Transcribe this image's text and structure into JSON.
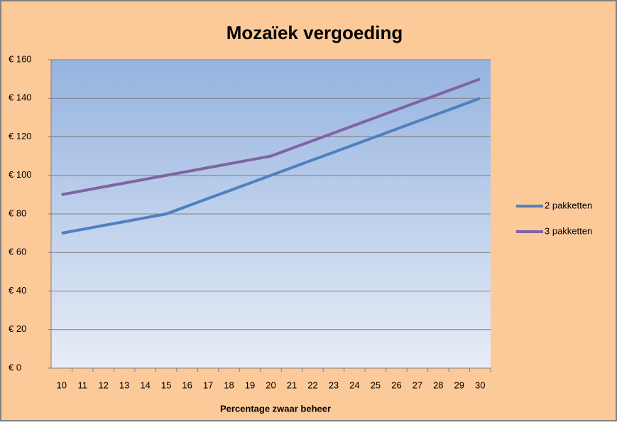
{
  "chart_data": {
    "type": "line",
    "title": "Mozaïek vergoeding",
    "x_label": "Percentage zwaar beheer",
    "categories": [
      "10",
      "11",
      "12",
      "13",
      "14",
      "15",
      "16",
      "17",
      "18",
      "19",
      "20",
      "21",
      "22",
      "23",
      "24",
      "25",
      "26",
      "27",
      "28",
      "29",
      "30"
    ],
    "series": [
      {
        "name": "2 pakketten",
        "color": "#4f81bd",
        "values": [
          70,
          72,
          74,
          76,
          78,
          80,
          84,
          88,
          92,
          96,
          100,
          104,
          108,
          112,
          116,
          120,
          124,
          128,
          132,
          136,
          140
        ]
      },
      {
        "name": "3 pakketten",
        "color": "#8064a2",
        "values": [
          90,
          92,
          94,
          96,
          98,
          100,
          102,
          104,
          106,
          108,
          110,
          114,
          118,
          122,
          126,
          130,
          134,
          138,
          142,
          146,
          150
        ]
      }
    ],
    "ylim": [
      0,
      160
    ],
    "yticks": [
      {
        "value": 0,
        "label": "€ 0"
      },
      {
        "value": 20,
        "label": "€ 20"
      },
      {
        "value": 40,
        "label": "€ 40"
      },
      {
        "value": 60,
        "label": "€ 60"
      },
      {
        "value": 80,
        "label": "€ 80"
      },
      {
        "value": 100,
        "label": "€ 100"
      },
      {
        "value": 120,
        "label": "€ 120"
      },
      {
        "value": 140,
        "label": "€ 140"
      },
      {
        "value": 160,
        "label": "€ 160"
      }
    ],
    "grid": true,
    "legend": "right"
  }
}
